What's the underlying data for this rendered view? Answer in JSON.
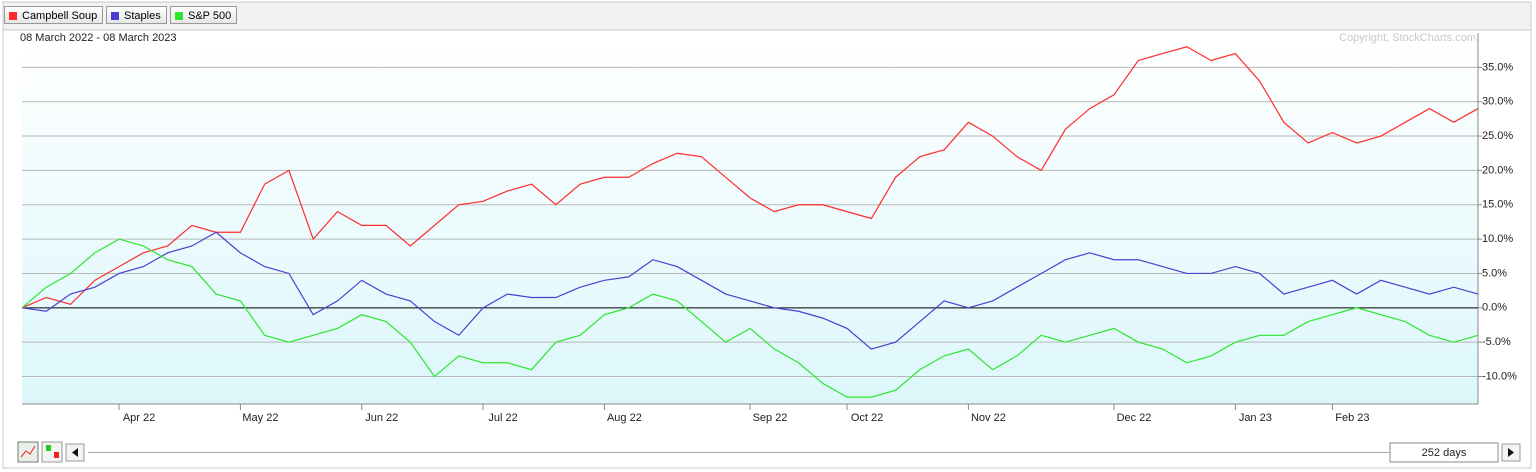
{
  "chart_data": {
    "type": "line",
    "subtitle": "08 March 2022 - 08 March 2023",
    "copyright": "Copyright, StockCharts.com",
    "categories": [
      null,
      null,
      null,
      null,
      "Apr 22",
      null,
      null,
      null,
      null,
      "May 22",
      null,
      null,
      null,
      null,
      "Jun 22",
      null,
      null,
      null,
      null,
      "Jul 22",
      null,
      null,
      null,
      null,
      "Aug 22",
      null,
      null,
      null,
      null,
      null,
      "Sep 22",
      null,
      null,
      null,
      "Oct 22",
      null,
      null,
      null,
      null,
      "Nov 22",
      null,
      null,
      null,
      null,
      null,
      "Dec 22",
      null,
      null,
      null,
      null,
      "Jan 23",
      null,
      null,
      null,
      "Feb 23",
      null,
      null,
      null,
      null,
      null,
      null
    ],
    "series": [
      {
        "name": "Campbell Soup",
        "color": "#ff2b2b",
        "values": [
          0,
          1.5,
          0.5,
          4,
          6,
          8,
          9,
          12,
          11,
          11,
          18,
          20,
          10,
          14,
          12,
          12,
          9,
          12,
          15,
          15.5,
          17,
          18,
          15,
          18,
          19,
          19,
          21,
          22.5,
          22,
          19,
          16,
          14,
          15,
          15,
          14,
          13,
          19,
          22,
          23,
          27,
          25,
          22,
          20,
          26,
          29,
          31,
          36,
          37,
          38,
          36,
          37,
          33,
          27,
          24,
          25.5,
          24,
          25,
          27,
          29,
          27,
          29
        ]
      },
      {
        "name": "Staples",
        "color": "#4b3fd1",
        "values": [
          0,
          -0.5,
          2,
          3,
          5,
          6,
          8,
          9,
          11,
          8,
          6,
          5,
          -1,
          1,
          4,
          2,
          1,
          -2,
          -4,
          0,
          2,
          1.5,
          1.5,
          3,
          4,
          4.5,
          7,
          6,
          4,
          2,
          1,
          0,
          -0.5,
          -1.5,
          -3,
          -6,
          -5,
          -2,
          1,
          0,
          1,
          3,
          5,
          7,
          8,
          7,
          7,
          6,
          5,
          5,
          6,
          5,
          2,
          3,
          4,
          2,
          4,
          3,
          2,
          3,
          2
        ]
      },
      {
        "name": "S&P 500",
        "color": "#2de62d",
        "values": [
          0,
          3,
          5,
          8,
          10,
          9,
          7,
          6,
          2,
          1,
          -4,
          -5,
          -4,
          -3,
          -1,
          -2,
          -5,
          -10,
          -7,
          -8,
          -8,
          -9,
          -5,
          -4,
          -1,
          0,
          2,
          1,
          -2,
          -5,
          -3,
          -6,
          -8,
          -11,
          -13,
          -13,
          -12,
          -9,
          -7,
          -6,
          -9,
          -7,
          -4,
          -5,
          -4,
          -3,
          -5,
          -6,
          -8,
          -7,
          -5,
          -4,
          -4,
          -2,
          -1,
          0,
          -1,
          -2,
          -4,
          -5,
          -4
        ]
      }
    ],
    "ylim": [
      -14,
      40
    ],
    "yticks": [
      {
        "value": -10,
        "label": "-10.0%"
      },
      {
        "value": -5,
        "label": "-5.0%"
      },
      {
        "value": 0,
        "label": "0.0%"
      },
      {
        "value": 5,
        "label": "5.0%"
      },
      {
        "value": 10,
        "label": "10.0%"
      },
      {
        "value": 15,
        "label": "15.0%"
      },
      {
        "value": 20,
        "label": "20.0%"
      },
      {
        "value": 25,
        "label": "25.0%"
      },
      {
        "value": 30,
        "label": "30.0%"
      },
      {
        "value": 35,
        "label": "35.0%"
      }
    ],
    "grid": true
  },
  "controls": {
    "range": "252 days"
  }
}
